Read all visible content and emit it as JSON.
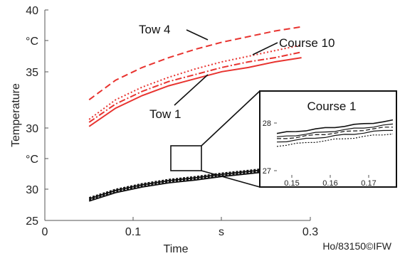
{
  "chart_data": {
    "type": "line",
    "title": "",
    "xlabel": "Time",
    "ylabel": "Temperature",
    "xlim": [
      0,
      0.3
    ],
    "ylim": [
      25,
      40
    ],
    "x_ticks": [
      "0",
      "0.1",
      "s",
      "0.3"
    ],
    "y_ticks": [
      "25",
      "30",
      "°C",
      "30",
      "35",
      "°C",
      "40"
    ],
    "grid": false,
    "series": [
      {
        "name": "Tow 4",
        "color": "#e8332f",
        "style": "dashed",
        "x": [
          0.05,
          0.08,
          0.11,
          0.14,
          0.17,
          0.2,
          0.23,
          0.26,
          0.29
        ],
        "y": [
          33.6,
          35.0,
          35.9,
          36.6,
          37.2,
          37.7,
          38.1,
          38.5,
          38.8
        ]
      },
      {
        "name": "",
        "color": "#e8332f",
        "style": "dotted",
        "x": [
          0.05,
          0.08,
          0.11,
          0.14,
          0.17,
          0.2,
          0.23,
          0.26,
          0.29
        ],
        "y": [
          32.2,
          33.6,
          34.5,
          35.2,
          35.8,
          36.3,
          36.7,
          37.1,
          37.5
        ]
      },
      {
        "name": "Course 10",
        "color": "#e8332f",
        "style": "dashdot",
        "x": [
          0.05,
          0.08,
          0.11,
          0.14,
          0.17,
          0.2,
          0.23,
          0.26,
          0.29
        ],
        "y": [
          32.0,
          33.3,
          34.2,
          34.9,
          35.4,
          35.9,
          36.3,
          36.6,
          37.0
        ]
      },
      {
        "name": "Tow 1",
        "color": "#e8332f",
        "style": "solid",
        "x": [
          0.05,
          0.08,
          0.11,
          0.14,
          0.17,
          0.2,
          0.23,
          0.26,
          0.29
        ],
        "y": [
          31.7,
          33.0,
          33.9,
          34.6,
          35.1,
          35.6,
          35.9,
          36.3,
          36.6
        ]
      },
      {
        "name": "Course 1",
        "color": "#111111",
        "style": "solid",
        "x": [
          0.05,
          0.08,
          0.11,
          0.14,
          0.17,
          0.2,
          0.23,
          0.26,
          0.29
        ],
        "y": [
          26.5,
          27.1,
          27.5,
          27.8,
          28.0,
          28.25,
          28.45,
          28.65,
          28.8
        ]
      }
    ],
    "annotations": [
      "Tow 4",
      "Course 10",
      "Tow 1"
    ],
    "inset": {
      "title": "Course 1",
      "xlim": [
        0.145,
        0.178
      ],
      "ylim": [
        26.9,
        28.2
      ],
      "x_ticks": [
        "0.15",
        "0.16",
        "0.17"
      ],
      "y_ticks": [
        "27",
        "28"
      ],
      "series": [
        {
          "x": [
            0.145,
            0.178
          ],
          "y": [
            27.78,
            28.05
          ]
        },
        {
          "x": [
            0.145,
            0.178
          ],
          "y": [
            27.7,
            27.97
          ]
        },
        {
          "x": [
            0.145,
            0.178
          ],
          "y": [
            27.66,
            27.92
          ]
        },
        {
          "x": [
            0.145,
            0.178
          ],
          "y": [
            27.6,
            27.86
          ]
        },
        {
          "x": [
            0.145,
            0.178
          ],
          "y": [
            27.52,
            27.78
          ]
        }
      ]
    },
    "credit": "Ho/83150©IFW"
  }
}
